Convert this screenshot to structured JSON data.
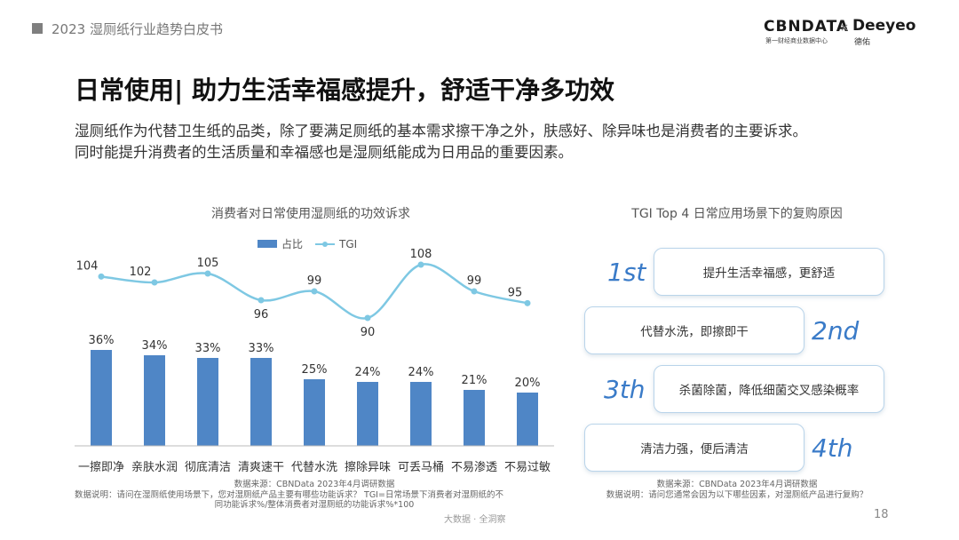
{
  "header": {
    "title": "2023 湿厕纸行业趋势白皮书",
    "logo_cbn": "CBNDATA",
    "logo_cbn_sub": "第一财经商业数据中心",
    "logo_sep": "×",
    "logo_deeyeo": "Deeyeo",
    "logo_deeyeo_sub": "德佑"
  },
  "page_title": "日常使用| 助力生活幸福感提升，舒适干净多功效",
  "description": {
    "line1": "湿厕纸作为代替卫生纸的品类，除了要满足厕纸的基本需求擦干净之外，肤感好、除异味也是消费者的主要诉求。",
    "line2": "同时能提升消费者的生活质量和幸福感也是湿厕纸能成为日用品的重要因素。"
  },
  "chart_data": {
    "type": "bar",
    "title": "消费者对日常使用湿厕纸的功效诉求",
    "categories": [
      "一擦即净",
      "亲肤水润",
      "彻底清洁",
      "清爽速干",
      "代替水洗",
      "擦除异味",
      "可丢马桶",
      "不易渗透",
      "不易过敏"
    ],
    "series": [
      {
        "name": "占比",
        "values": [
          36,
          34,
          33,
          33,
          25,
          24,
          24,
          21,
          20
        ],
        "value_labels": [
          "36%",
          "34%",
          "33%",
          "33%",
          "25%",
          "24%",
          "24%",
          "21%",
          "20%"
        ]
      },
      {
        "name": "TGI",
        "values": [
          104,
          102,
          105,
          96,
          99,
          90,
          108,
          99,
          95
        ]
      }
    ],
    "legend_placement": "top-center",
    "grid": false
  },
  "left_source": {
    "source": "数据来源：CBNData 2023年4月调研数据",
    "note1": "数据说明：请问在湿厕纸使用场景下，您对湿厕纸产品主要有哪些功能诉求？  TGI=日常场景下消费者对湿厕纸的不",
    "note2": "同功能诉求%/整体消费者对湿厕纸的功能诉求%*100"
  },
  "tgi": {
    "title": "TGI Top 4 日常应用场景下的复购原因",
    "items": [
      {
        "rank": "1st",
        "text": "提升生活幸福感，更舒适"
      },
      {
        "rank": "2nd",
        "text": "代替水洗，即擦即干"
      },
      {
        "rank": "3th",
        "text": "杀菌除菌，降低细菌交叉感染概率"
      },
      {
        "rank": "4th",
        "text": "清洁力强，便后清洁"
      }
    ],
    "colors": {
      "rank": "#3a7bc8",
      "border": "#b9d4ea"
    }
  },
  "right_source": {
    "source": "数据来源：CBNData 2023年4月调研数据",
    "note": "数据说明：请问您通常会因为以下哪些因素，对湿厕纸产品进行复购？"
  },
  "footer": {
    "tag": "大数据 · 全洞察",
    "page": "18"
  },
  "colors": {
    "bar": "#4f86c6",
    "line": "#7ec8e3"
  }
}
